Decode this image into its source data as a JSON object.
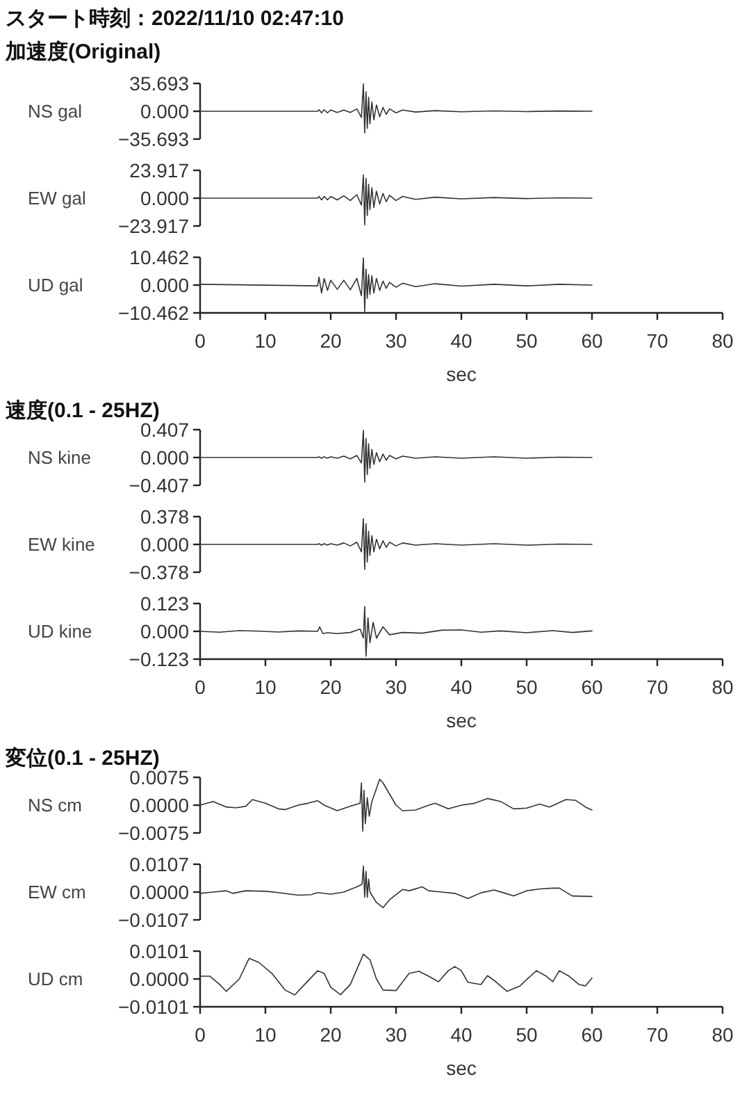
{
  "chart_data": [
    {
      "type": "line",
      "title": "スタート時刻：2022/11/10 02:47:10",
      "subtitle": "加速度(Original)",
      "ylabel": "NS gal",
      "xlim": [
        0,
        80
      ],
      "tick_labels": "y",
      "ylim": [
        -35.693,
        35.693
      ],
      "yticks": [
        35.693,
        {
          "value": 0,
          "label": "0.000"
        },
        {
          "value": -35.693,
          "label": "−35.693"
        }
      ],
      "x": [
        0,
        18,
        18.2,
        18.6,
        19,
        19.5,
        20,
        21,
        22,
        23,
        24,
        24.7,
        25.0,
        25.2,
        25.4,
        25.6,
        25.8,
        26.0,
        26.3,
        26.6,
        27,
        27.5,
        28,
        28.5,
        29,
        30,
        31,
        33,
        36,
        40,
        45,
        50,
        55,
        60
      ],
      "series": [
        {
          "color": "#333333",
          "values": [
            0,
            0,
            2,
            -2,
            2,
            -2,
            1.5,
            -1.5,
            1.5,
            -1.5,
            3,
            -8,
            35,
            -28,
            25,
            -22,
            18,
            -16,
            12,
            -11,
            8,
            -7,
            5,
            -4,
            3,
            -2,
            1.5,
            -1,
            0.8,
            -0.6,
            0.5,
            -0.4,
            0.3,
            0
          ]
        }
      ]
    },
    {
      "type": "line",
      "ylabel": "EW gal",
      "xlim": [
        0,
        80
      ],
      "tick_labels": "y",
      "ylim": [
        -23.917,
        23.917
      ],
      "yticks": [
        23.917,
        {
          "value": 0,
          "label": "0.000"
        },
        {
          "value": -23.917,
          "label": "−23.917"
        }
      ],
      "x": [
        0,
        18,
        18.2,
        18.6,
        19,
        19.5,
        20,
        21,
        22,
        23,
        24,
        24.7,
        25.0,
        25.2,
        25.4,
        25.6,
        25.8,
        26.0,
        26.3,
        26.6,
        27,
        27.5,
        28,
        28.5,
        29,
        30,
        31,
        33,
        36,
        40,
        45,
        50,
        55,
        60
      ],
      "series": [
        {
          "color": "#333333",
          "values": [
            0,
            0,
            1.5,
            -1.5,
            1.5,
            -1.5,
            1.5,
            -1.5,
            2,
            -2,
            3,
            -6,
            20,
            -23,
            17,
            -15,
            12,
            -10,
            9,
            -8,
            6,
            -5,
            4,
            -3,
            2.5,
            -2,
            1.5,
            -1,
            0.8,
            -0.6,
            0.5,
            -0.4,
            0.3,
            0
          ]
        }
      ]
    },
    {
      "type": "line",
      "ylabel": "UD gal",
      "xlim": [
        0,
        80
      ],
      "xticks": [
        0,
        10,
        20,
        30,
        40,
        50,
        60,
        70,
        80
      ],
      "xlabel": "sec",
      "ylim": [
        -10.462,
        10.462
      ],
      "yticks": [
        10.462,
        {
          "value": 0,
          "label": "0.000"
        },
        {
          "value": -10.462,
          "label": "−10.462"
        }
      ],
      "x": [
        0,
        18,
        18.2,
        18.6,
        19,
        19.5,
        20,
        21,
        22,
        23,
        24,
        24.7,
        25.0,
        25.2,
        25.4,
        25.6,
        25.8,
        26.0,
        26.3,
        26.6,
        27,
        27.5,
        28,
        28.5,
        29,
        30,
        31,
        33,
        36,
        40,
        45,
        50,
        55,
        60
      ],
      "series": [
        {
          "color": "#333333",
          "values": [
            0.3,
            -0.3,
            3,
            -3,
            2.5,
            -2,
            1.8,
            -1.6,
            1.8,
            -1.8,
            2.5,
            -4,
            10.2,
            -10,
            6,
            -5,
            4,
            -3.5,
            3.5,
            -3,
            2.5,
            -2,
            1.5,
            -1.2,
            1,
            -0.8,
            0.7,
            -0.6,
            0.5,
            -0.4,
            0.3,
            -0.3,
            0.3,
            0
          ]
        }
      ]
    },
    {
      "type": "line",
      "title": "速度(0.1 - 25HZ)",
      "ylabel": "NS kine",
      "xlim": [
        0,
        80
      ],
      "tick_labels": "y",
      "ylim": [
        -0.407,
        0.407
      ],
      "yticks": [
        0.407,
        {
          "value": 0,
          "label": "0.000"
        },
        {
          "value": -0.407,
          "label": "−0.407"
        }
      ],
      "x": [
        0,
        18,
        18.2,
        18.6,
        19,
        19.5,
        20,
        21,
        22,
        23,
        24,
        24.7,
        25.0,
        25.2,
        25.4,
        25.6,
        25.8,
        26.0,
        26.3,
        26.6,
        27,
        27.5,
        28,
        28.5,
        29,
        30,
        31,
        33,
        36,
        40,
        45,
        50,
        55,
        60
      ],
      "series": [
        {
          "color": "#333333",
          "values": [
            0,
            0,
            0.01,
            -0.01,
            0.01,
            -0.01,
            0.01,
            -0.01,
            0.02,
            -0.02,
            0.03,
            -0.08,
            0.4,
            -0.36,
            0.28,
            -0.25,
            0.2,
            -0.16,
            0.12,
            -0.1,
            0.07,
            -0.06,
            0.05,
            -0.04,
            0.03,
            -0.02,
            0.02,
            -0.01,
            0.01,
            -0.01,
            0.01,
            -0.01,
            0.005,
            0
          ]
        }
      ]
    },
    {
      "type": "line",
      "ylabel": "EW kine",
      "xlim": [
        0,
        80
      ],
      "tick_labels": "y",
      "ylim": [
        -0.378,
        0.378
      ],
      "yticks": [
        0.378,
        {
          "value": 0,
          "label": "0.000"
        },
        {
          "value": -0.378,
          "label": "−0.378"
        }
      ],
      "x": [
        0,
        18,
        18.2,
        18.6,
        19,
        19.5,
        20,
        21,
        22,
        23,
        24,
        24.7,
        25.0,
        25.2,
        25.4,
        25.6,
        25.8,
        26.0,
        26.3,
        26.6,
        27,
        27.5,
        28,
        28.5,
        29,
        30,
        31,
        33,
        36,
        40,
        45,
        50,
        55,
        60
      ],
      "series": [
        {
          "color": "#333333",
          "values": [
            0,
            0,
            0.01,
            -0.01,
            0.01,
            -0.01,
            0.01,
            -0.01,
            0.02,
            -0.02,
            0.03,
            -0.1,
            0.35,
            -0.34,
            0.28,
            -0.24,
            0.18,
            -0.15,
            0.12,
            -0.1,
            0.07,
            -0.06,
            0.05,
            -0.04,
            0.03,
            -0.02,
            0.02,
            -0.01,
            0.01,
            -0.01,
            0.01,
            -0.01,
            0.005,
            0
          ]
        }
      ]
    },
    {
      "type": "line",
      "ylabel": "UD kine",
      "xlim": [
        0,
        80
      ],
      "xticks": [
        0,
        10,
        20,
        30,
        40,
        50,
        60,
        70,
        80
      ],
      "xlabel": "sec",
      "ylim": [
        -0.123,
        0.123
      ],
      "yticks": [
        0.123,
        {
          "value": 0,
          "label": "0.000"
        },
        {
          "value": -0.123,
          "label": "−0.123"
        }
      ],
      "x": [
        0,
        3,
        6,
        9,
        12,
        15,
        18,
        18.3,
        18.8,
        19.5,
        21,
        23,
        24.5,
        25,
        25.2,
        25.4,
        25.7,
        26,
        26.5,
        27,
        28,
        29,
        31,
        34,
        37,
        40,
        43,
        46,
        50,
        54,
        57,
        60
      ],
      "series": [
        {
          "color": "#333333",
          "values": [
            0,
            -0.004,
            0.003,
            0.001,
            -0.003,
            0.002,
            0,
            0.02,
            -0.01,
            -0.006,
            -0.01,
            -0.005,
            0.01,
            -0.03,
            0.11,
            -0.11,
            0.06,
            -0.05,
            0.04,
            -0.03,
            0.02,
            -0.015,
            -0.005,
            -0.008,
            0.005,
            0.006,
            -0.004,
            0.002,
            -0.006,
            0.003,
            -0.005,
            0.002
          ]
        }
      ]
    },
    {
      "type": "line",
      "title": "変位(0.1 - 25HZ)",
      "ylabel": "NS cm",
      "xlim": [
        0,
        80
      ],
      "tick_labels": "y",
      "ylim": [
        -0.0075,
        0.0075
      ],
      "yticks": [
        0.0075,
        {
          "value": 0,
          "label": "0.0000"
        },
        {
          "value": -0.0075,
          "label": "−0.0075"
        }
      ],
      "x": [
        0,
        2,
        4,
        5.5,
        7,
        8,
        10,
        12,
        13,
        15,
        16.5,
        18,
        19,
        21,
        23,
        24.5,
        24.7,
        24.9,
        25.1,
        25.3,
        25.6,
        25.9,
        26.3,
        27.5,
        28,
        29,
        30,
        31,
        33,
        35,
        36,
        38,
        40,
        42,
        44,
        46,
        48,
        50,
        52,
        53.5,
        56,
        57.5,
        59,
        60
      ],
      "series": [
        {
          "color": "#333333",
          "values": [
            0,
            0.001,
            -0.0005,
            -0.0007,
            -0.0003,
            0.0015,
            0.0005,
            -0.001,
            -0.0012,
            0,
            0.0005,
            0.0012,
            0,
            -0.0015,
            -0.0003,
            0.0005,
            0.006,
            -0.007,
            0.004,
            -0.005,
            0.002,
            -0.003,
            0.001,
            0.007,
            0.006,
            0.003,
            0,
            -0.0015,
            -0.0013,
            0,
            0.0005,
            -0.001,
            0,
            0.0005,
            0.0018,
            0.001,
            -0.001,
            -0.0008,
            0.0003,
            -0.0005,
            0.0015,
            0.0013,
            -0.0005,
            -0.0013
          ]
        }
      ]
    },
    {
      "type": "line",
      "ylabel": "EW cm",
      "xlim": [
        0,
        80
      ],
      "tick_labels": "y",
      "ylim": [
        -0.0107,
        0.0107
      ],
      "yticks": [
        0.0107,
        {
          "value": 0,
          "label": "0.0000"
        },
        {
          "value": -0.0107,
          "label": "−0.0107"
        }
      ],
      "x": [
        0,
        2,
        4,
        5,
        7,
        10,
        12,
        15,
        17,
        18,
        20,
        22,
        24,
        24.8,
        25,
        25.2,
        25.4,
        25.6,
        25.8,
        26,
        27,
        28,
        29,
        30,
        31,
        32,
        34,
        35,
        37,
        39,
        41,
        43,
        45,
        46.5,
        48,
        50,
        52,
        54,
        55,
        57,
        60
      ],
      "series": [
        {
          "color": "#333333",
          "values": [
            -0.0005,
            0,
            0.0005,
            -0.0005,
            0.0005,
            0.0003,
            -0.0002,
            -0.0012,
            -0.001,
            -0.0002,
            -0.0008,
            0,
            0.002,
            0.003,
            0.01,
            -0.002,
            0.008,
            -0.002,
            0.005,
            0,
            -0.004,
            -0.006,
            -0.003,
            -0.001,
            0.001,
            0.0005,
            0.002,
            0.0005,
            0,
            -0.0005,
            -0.0025,
            -0.0003,
            0.0008,
            -0.0003,
            -0.0015,
            0.0005,
            0.0012,
            0.0015,
            0.0015,
            -0.0015,
            -0.0017
          ]
        }
      ]
    },
    {
      "type": "line",
      "ylabel": "UD cm",
      "xlim": [
        0,
        80
      ],
      "xticks": [
        0,
        10,
        20,
        30,
        40,
        50,
        60,
        70,
        80
      ],
      "xlabel": "sec",
      "ylim": [
        -0.0101,
        0.0101
      ],
      "yticks": [
        0.0101,
        {
          "value": 0,
          "label": "0.0000"
        },
        {
          "value": -0.0101,
          "label": "−0.0101"
        }
      ],
      "x": [
        0,
        1.5,
        3,
        4,
        6,
        7.5,
        9,
        11,
        13,
        14.5,
        16,
        18,
        19,
        20,
        21.5,
        23,
        25,
        26,
        27,
        28,
        30,
        32,
        33.5,
        35,
        36.5,
        38,
        39,
        40,
        41,
        43,
        44,
        45,
        47,
        49,
        50,
        51.5,
        53,
        54,
        55,
        56.5,
        58,
        59,
        60
      ],
      "series": [
        {
          "color": "#333333",
          "values": [
            0.001,
            0.001,
            -0.002,
            -0.0045,
            0,
            0.0075,
            0.006,
            0.002,
            -0.004,
            -0.0058,
            -0.002,
            0.003,
            0.002,
            -0.003,
            -0.0057,
            -0.002,
            0.009,
            0.007,
            0,
            -0.004,
            -0.0042,
            0.002,
            0.0028,
            0.001,
            -0.001,
            0.003,
            0.0045,
            0.003,
            -0.0012,
            -0.002,
            0.0012,
            -0.0005,
            -0.0045,
            -0.0025,
            -0.0002,
            0.003,
            0.001,
            -0.001,
            0.003,
            0.001,
            -0.002,
            -0.0025,
            0.0003
          ]
        }
      ]
    }
  ]
}
